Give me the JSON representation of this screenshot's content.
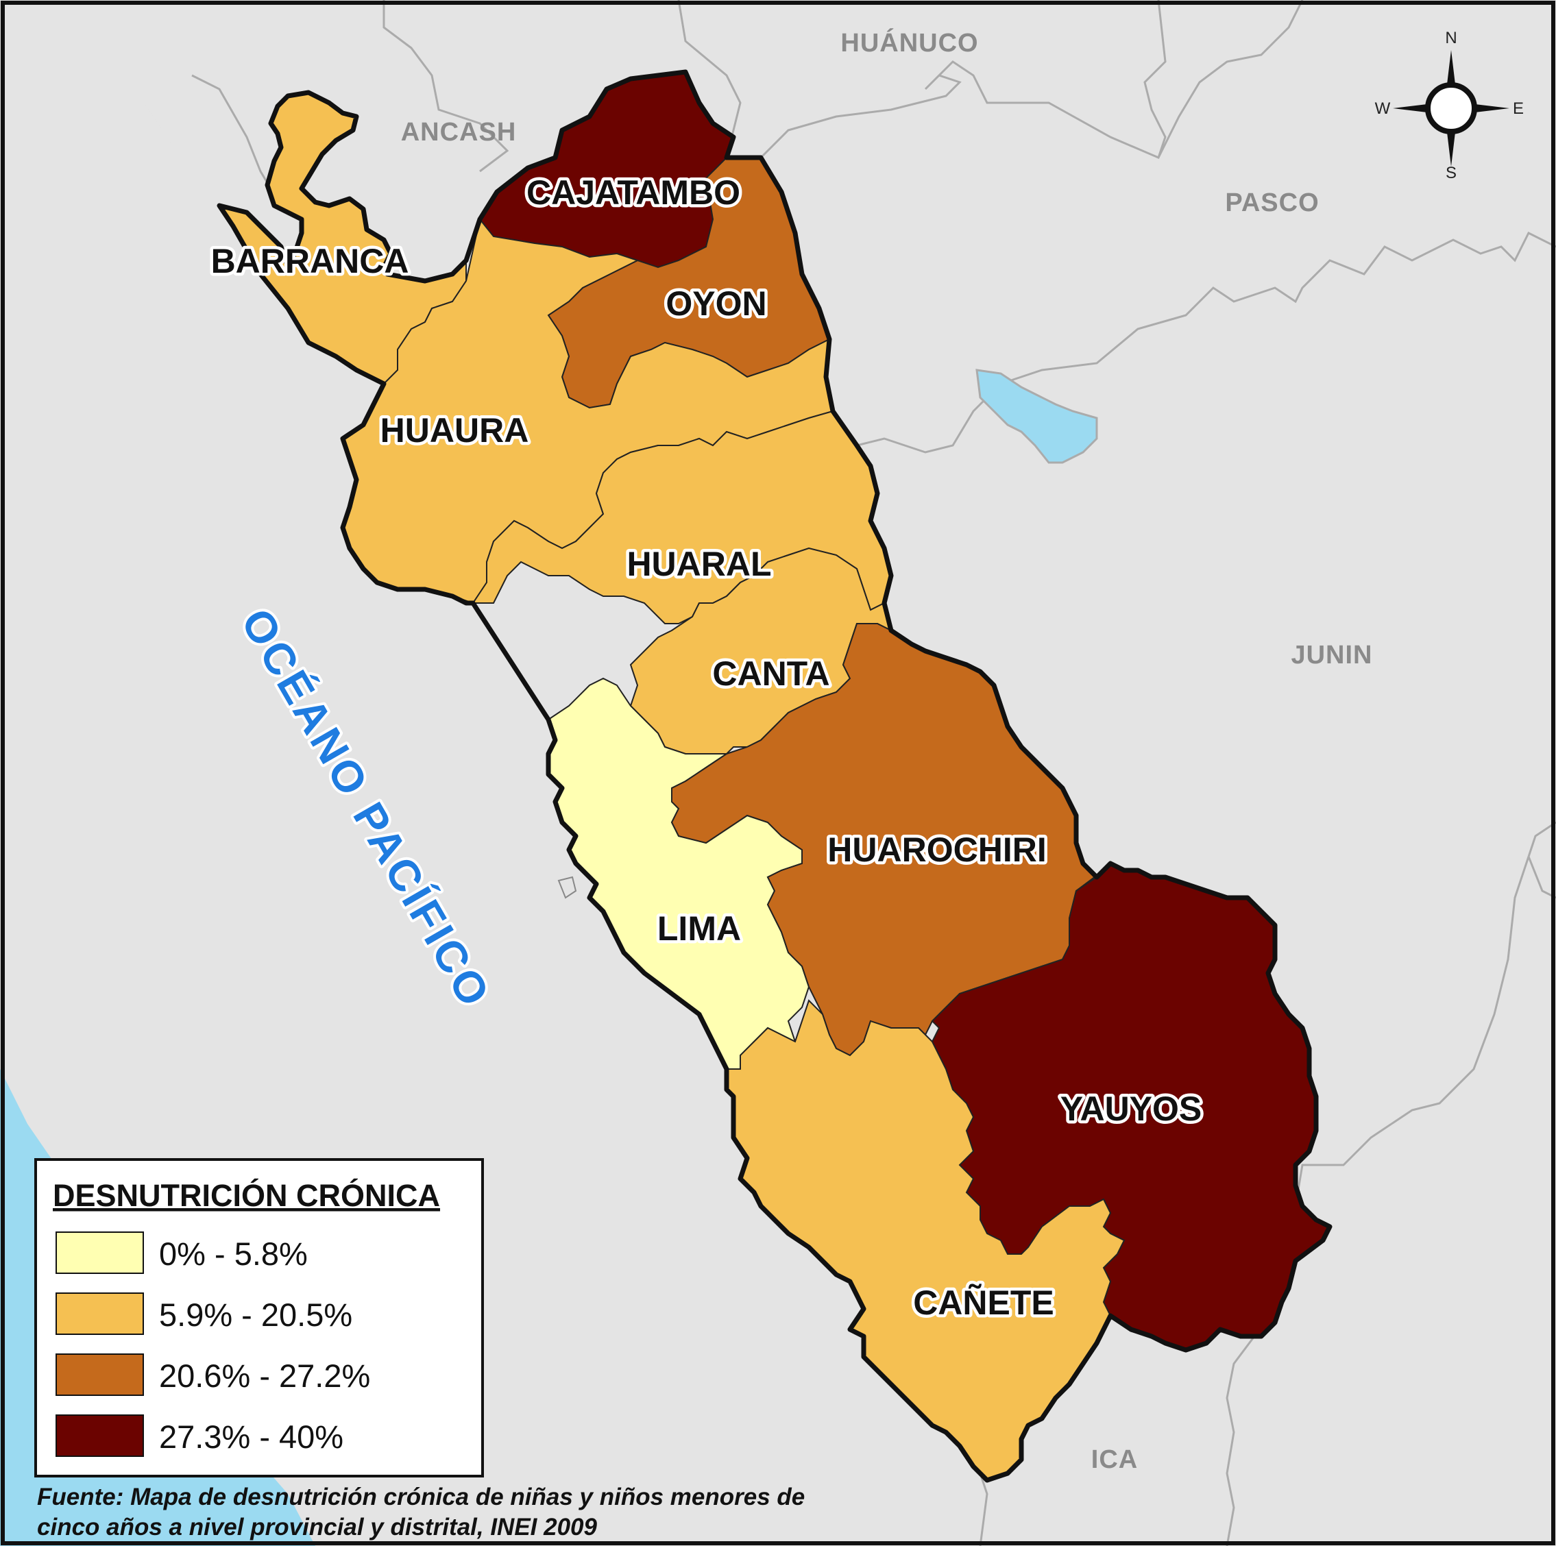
{
  "legend": {
    "title": "DESNUTRICIÓN CRÓNICA",
    "classes": [
      {
        "label": "0% - 5.8%",
        "color": "#ffffb2"
      },
      {
        "label": "5.9% - 20.5%",
        "color": "#f5c052"
      },
      {
        "label": "20.6% - 27.2%",
        "color": "#c56a1c"
      },
      {
        "label": "27.3% - 40%",
        "color": "#6b0300"
      }
    ]
  },
  "provinces": {
    "barranca": {
      "name": "BARRANCA",
      "class": 1
    },
    "cajatambo": {
      "name": "CAJATAMBO",
      "class": 3
    },
    "oyon": {
      "name": "OYON",
      "class": 2
    },
    "huaura": {
      "name": "HUAURA",
      "class": 1
    },
    "huaral": {
      "name": "HUARAL",
      "class": 1
    },
    "canta": {
      "name": "CANTA",
      "class": 1
    },
    "lima": {
      "name": "LIMA",
      "class": 0
    },
    "huarochiri": {
      "name": "HUAROCHIRI",
      "class": 2
    },
    "yauyos": {
      "name": "YAUYOS",
      "class": 3
    },
    "canete": {
      "name": "CAÑETE",
      "class": 1
    }
  },
  "departments": {
    "huanuco": "HUÁNUCO",
    "ancash": "ANCASH",
    "pasco": "PASCO",
    "junin": "JUNIN",
    "ica": "ICA"
  },
  "ocean": "OCÉANO PACÍFICO",
  "compass": {
    "n": "N",
    "s": "S",
    "e": "E",
    "w": "W"
  },
  "source": {
    "line1": "Fuente: Mapa de desnutrición crónica de niñas y niños menores de",
    "line2": "cinco años a nivel provincial y distrital, INEI 2009"
  },
  "colors": {
    "sea": "#9bdaf1",
    "land": "#e4e4e4",
    "outline": "#111111",
    "ocean_label": "#1f7ce0"
  }
}
